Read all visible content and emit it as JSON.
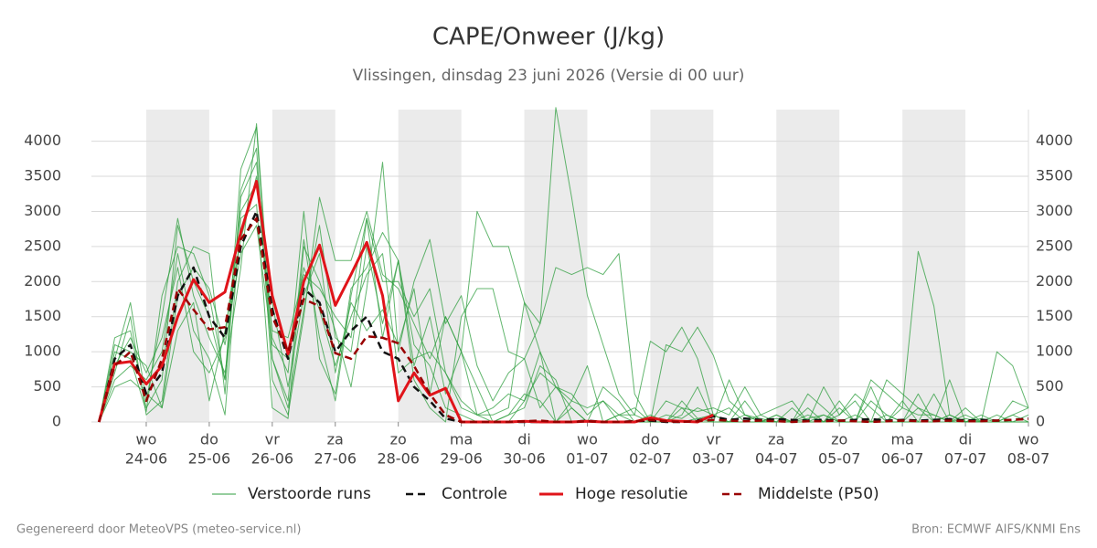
{
  "chart_data": {
    "type": "line",
    "title": "CAPE/Onweer (J/kg)",
    "subtitle": "Vlissingen, dinsdag 23 juni 2026 (Versie di 00 uur)",
    "footer_left": "Gegenereerd door MeteoVPS (meteo-service.nl)",
    "footer_right": "Bron: ECMWF AIFS/KNMI Ens",
    "x": [
      0.25,
      0.5,
      0.75,
      1,
      1.25,
      1.5,
      1.75,
      2,
      2.25,
      2.5,
      2.75,
      3,
      3.25,
      3.5,
      3.75,
      4,
      4.25,
      4.5,
      4.75,
      5,
      5.25,
      5.5,
      5.75,
      6,
      6.25,
      6.5,
      6.75,
      7,
      7.25,
      7.5,
      7.75,
      8,
      8.25,
      8.5,
      8.75,
      9,
      9.25,
      9.5,
      9.75,
      10,
      10.25,
      10.5,
      10.75,
      11,
      11.25,
      11.5,
      11.75,
      12,
      12.25,
      12.5,
      12.75,
      13,
      13.25,
      13.5,
      13.75,
      14,
      14.25,
      14.5,
      14.75,
      15
    ],
    "xlim": [
      0.13,
      15
    ],
    "xticks": [
      {
        "value": 1,
        "label": "wo",
        "date": "24-06"
      },
      {
        "value": 2,
        "label": "do",
        "date": "25-06"
      },
      {
        "value": 3,
        "label": "vr",
        "date": "26-06"
      },
      {
        "value": 4,
        "label": "za",
        "date": "27-06"
      },
      {
        "value": 5,
        "label": "zo",
        "date": "28-06"
      },
      {
        "value": 6,
        "label": "ma",
        "date": "29-06"
      },
      {
        "value": 7,
        "label": "di",
        "date": "30-06"
      },
      {
        "value": 8,
        "label": "wo",
        "date": "01-07"
      },
      {
        "value": 9,
        "label": "do",
        "date": "02-07"
      },
      {
        "value": 10,
        "label": "vr",
        "date": "03-07"
      },
      {
        "value": 11,
        "label": "za",
        "date": "04-07"
      },
      {
        "value": 12,
        "label": "zo",
        "date": "05-07"
      },
      {
        "value": 13,
        "label": "ma",
        "date": "06-07"
      },
      {
        "value": 14,
        "label": "di",
        "date": "07-07"
      },
      {
        "value": 15,
        "label": "wo",
        "date": "08-07"
      }
    ],
    "shaded_bands": [
      [
        1,
        2
      ],
      [
        3,
        4
      ],
      [
        5,
        6
      ],
      [
        7,
        8
      ],
      [
        9,
        10
      ],
      [
        11,
        12
      ],
      [
        13,
        14
      ]
    ],
    "ylim": [
      0,
      4450
    ],
    "yticks": [
      0,
      500,
      1000,
      1500,
      2000,
      2500,
      3000,
      3500,
      4000
    ],
    "y2lim": [
      0,
      4450
    ],
    "y2ticks": [
      0,
      500,
      1000,
      1500,
      2000,
      2500,
      3000,
      3500,
      4000
    ],
    "grid": true,
    "ensemble": {
      "name": "Verstoorde runs",
      "color": "#2e9e3e",
      "members": [
        [
          0,
          1200,
          1300,
          200,
          600,
          2800,
          2000,
          1500,
          600,
          3600,
          4200,
          900,
          300,
          2600,
          1200,
          300,
          1800,
          2900,
          1200,
          2300,
          600,
          200,
          0,
          1500,
          1900,
          1900,
          1000,
          900,
          1400,
          4480,
          3200,
          1800,
          1100,
          400,
          100,
          0,
          0,
          200,
          0,
          0,
          0,
          300,
          0,
          100,
          0,
          50,
          100,
          0,
          0,
          0,
          100,
          0,
          0,
          0,
          0,
          50,
          0,
          0,
          100,
          0
        ],
        [
          0,
          700,
          1500,
          100,
          300,
          2000,
          2500,
          2400,
          400,
          3300,
          3900,
          600,
          100,
          1500,
          3200,
          2300,
          2300,
          3000,
          2100,
          1900,
          1400,
          900,
          1500,
          1000,
          3000,
          2500,
          2500,
          1700,
          1400,
          2200,
          2100,
          2200,
          2100,
          2400,
          400,
          0,
          1100,
          1000,
          1350,
          950,
          300,
          100,
          50,
          0,
          0,
          200,
          0,
          100,
          400,
          200,
          0,
          300,
          0,
          0,
          100,
          0,
          50,
          0,
          300,
          200
        ],
        [
          0,
          600,
          800,
          600,
          1000,
          2400,
          1300,
          900,
          100,
          2900,
          3100,
          200,
          50,
          2500,
          2000,
          1300,
          500,
          1900,
          3700,
          1000,
          2000,
          2600,
          1400,
          1800,
          800,
          300,
          700,
          900,
          200,
          500,
          400,
          100,
          300,
          0,
          0,
          0,
          100,
          50,
          200,
          100,
          0,
          0,
          0,
          50,
          0,
          0,
          100,
          0,
          0,
          300,
          100,
          0,
          400,
          0,
          100,
          0,
          0,
          100,
          0,
          0
        ],
        [
          0,
          1100,
          1000,
          800,
          200,
          1800,
          2200,
          1900,
          1100,
          2400,
          2800,
          1100,
          900,
          2200,
          1600,
          800,
          1500,
          2100,
          2400,
          700,
          900,
          1000,
          700,
          300,
          100,
          200,
          400,
          300,
          700,
          500,
          300,
          200,
          300,
          100,
          200,
          0,
          300,
          200,
          150,
          200,
          100,
          500,
          100,
          0,
          200,
          0,
          500,
          100,
          300,
          0,
          600,
          400,
          200,
          100,
          0,
          200,
          0,
          0,
          100,
          200
        ],
        [
          0,
          900,
          1700,
          300,
          1500,
          2900,
          1800,
          1200,
          700,
          2200,
          4250,
          1200,
          700,
          3000,
          900,
          400,
          1900,
          2200,
          2700,
          2300,
          1100,
          800,
          200,
          100,
          0,
          0,
          100,
          400,
          300,
          0,
          200,
          0,
          0,
          100,
          0,
          100,
          0,
          0,
          50,
          100,
          0,
          0,
          100,
          200,
          300,
          0,
          0,
          200,
          0,
          600,
          400,
          200,
          2430,
          1650,
          100,
          0,
          0,
          1000,
          800,
          200
        ],
        [
          0,
          500,
          600,
          400,
          200,
          1300,
          1700,
          300,
          1300,
          2600,
          3500,
          1700,
          500,
          1800,
          2400,
          700,
          1700,
          1300,
          1600,
          1100,
          1900,
          400,
          1500,
          1000,
          500,
          0,
          0,
          300,
          1000,
          0,
          300,
          800,
          0,
          0,
          0,
          0,
          0,
          300,
          50,
          0,
          600,
          100,
          0,
          0,
          0,
          400,
          200,
          0,
          0,
          500,
          0,
          0,
          200,
          0,
          600,
          0,
          0,
          0,
          0,
          0
        ],
        [
          0,
          800,
          1200,
          700,
          1200,
          2200,
          1000,
          700,
          1200,
          3000,
          3400,
          1300,
          1200,
          2100,
          1900,
          1500,
          1200,
          2900,
          2000,
          2000,
          1500,
          1900,
          700,
          200,
          100,
          100,
          200,
          1700,
          1000,
          500,
          200,
          0,
          0,
          100,
          100,
          1150,
          1000,
          1350,
          900,
          100,
          200,
          0,
          0,
          100,
          0,
          0,
          0,
          300,
          0,
          0,
          0,
          200,
          100,
          100,
          0,
          100,
          0,
          0,
          0,
          100
        ],
        [
          0,
          1000,
          900,
          150,
          1800,
          2500,
          2400,
          1800,
          600,
          3200,
          3700,
          900,
          200,
          1600,
          2800,
          1200,
          1000,
          2500,
          1400,
          2300,
          800,
          1500,
          400,
          1000,
          100,
          0,
          100,
          200,
          800,
          600,
          0,
          0,
          500,
          300,
          0,
          0,
          0,
          100,
          500,
          0,
          0,
          100,
          0,
          0,
          0,
          100,
          0,
          0,
          100,
          0,
          0,
          0,
          0,
          400,
          0,
          0,
          100,
          0,
          0,
          0
        ]
      ]
    },
    "series": [
      {
        "name": "Controle",
        "color": "#111111",
        "linestyle": "dashed",
        "linewidth": 2.5,
        "values": [
          0,
          900,
          1100,
          400,
          700,
          1800,
          2200,
          1500,
          1200,
          2500,
          3000,
          1600,
          900,
          1900,
          1700,
          1000,
          1300,
          1500,
          1000,
          900,
          500,
          300,
          50,
          0,
          0,
          0,
          0,
          0,
          0,
          0,
          0,
          20,
          0,
          0,
          10,
          20,
          0,
          0,
          20,
          80,
          30,
          50,
          30,
          40,
          30,
          20,
          30,
          20,
          30,
          40,
          20,
          30,
          20,
          30,
          40,
          20,
          30,
          20,
          30,
          50
        ]
      },
      {
        "name": "Hoge resolutie",
        "color": "#e0141a",
        "linestyle": "solid",
        "linewidth": 3,
        "values": [
          0,
          830,
          860,
          540,
          800,
          1500,
          2030,
          1700,
          1850,
          2700,
          3430,
          1800,
          970,
          2000,
          2520,
          1660,
          2100,
          2560,
          1800,
          300,
          700,
          380,
          480,
          0,
          0,
          0,
          0,
          10,
          0,
          0,
          0,
          10,
          0,
          0,
          0,
          60,
          20,
          10,
          0,
          100,
          null,
          null,
          null,
          null,
          null,
          null,
          null,
          null,
          null,
          null,
          null,
          null,
          null,
          null,
          null,
          null,
          null,
          null,
          null,
          null
        ]
      },
      {
        "name": "Middelste (P50)",
        "color": "#990000",
        "linestyle": "dashed",
        "linewidth": 2.5,
        "values": [
          0,
          800,
          1000,
          300,
          900,
          1900,
          1600,
          1320,
          1350,
          2600,
          2900,
          1500,
          1000,
          1750,
          1650,
          980,
          900,
          1220,
          1200,
          1120,
          800,
          400,
          100,
          0,
          0,
          0,
          0,
          10,
          20,
          0,
          0,
          10,
          0,
          0,
          10,
          30,
          10,
          0,
          10,
          30,
          20,
          10,
          20,
          10,
          0,
          10,
          10,
          20,
          10,
          0,
          10,
          20,
          10,
          10,
          20,
          10,
          10,
          20,
          30,
          40
        ]
      }
    ]
  }
}
